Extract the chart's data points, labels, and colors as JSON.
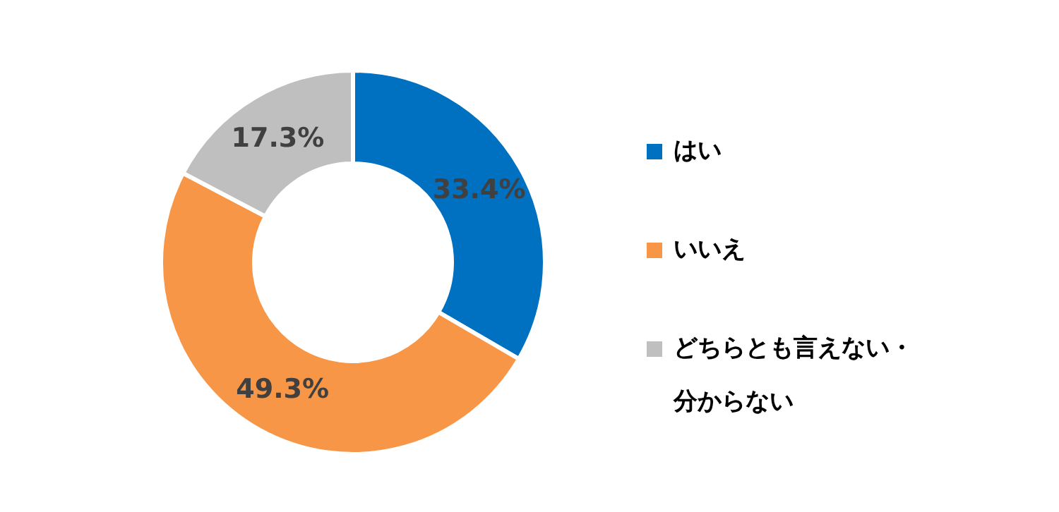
{
  "chart_data": {
    "type": "donut",
    "categories": [
      "はい",
      "いいえ",
      "どちらとも言えない・分からない"
    ],
    "values": [
      33.4,
      49.3,
      17.3
    ],
    "colors": [
      "#0070c0",
      "#f79646",
      "#bfbfbf"
    ],
    "value_labels": [
      "33.4%",
      "49.3%",
      "17.3%"
    ],
    "legend": "right"
  }
}
